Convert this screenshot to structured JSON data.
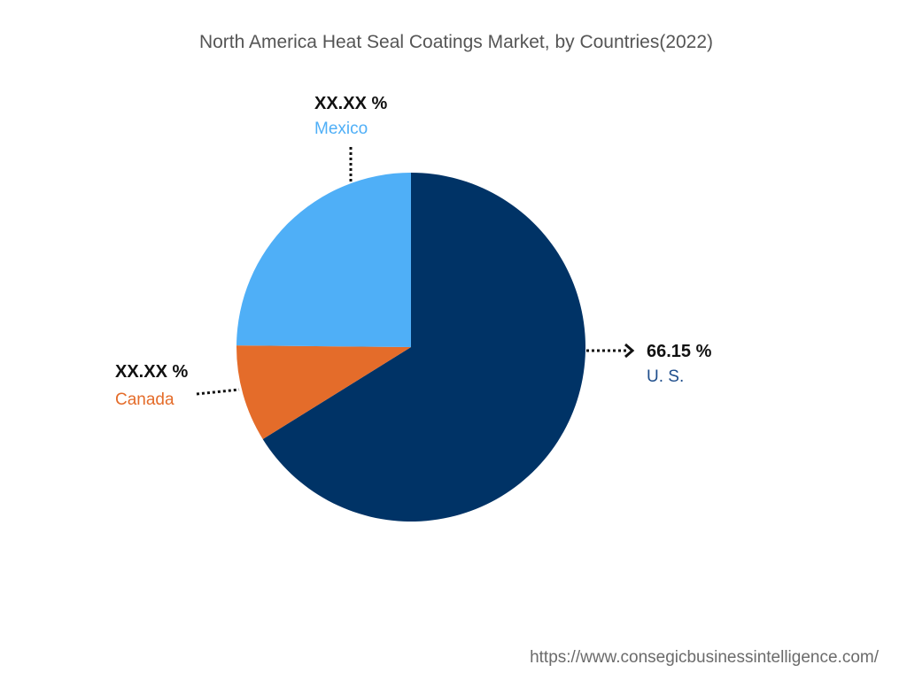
{
  "chart_data": {
    "type": "pie",
    "title": "North America Heat Seal Coatings Market, by Countries(2022)",
    "slices": [
      {
        "name": "U. S.",
        "value": 66.15,
        "display": "66.15 %",
        "color": "#003366"
      },
      {
        "name": "Canada",
        "value": 9.0,
        "display": "XX.XX %",
        "color": "#E46C2A"
      },
      {
        "name": "Mexico",
        "value": 24.85,
        "display": "XX.XX %",
        "color": "#4FAFF7"
      }
    ]
  },
  "source_url": "https://www.consegicbusinessintelligence.com/"
}
